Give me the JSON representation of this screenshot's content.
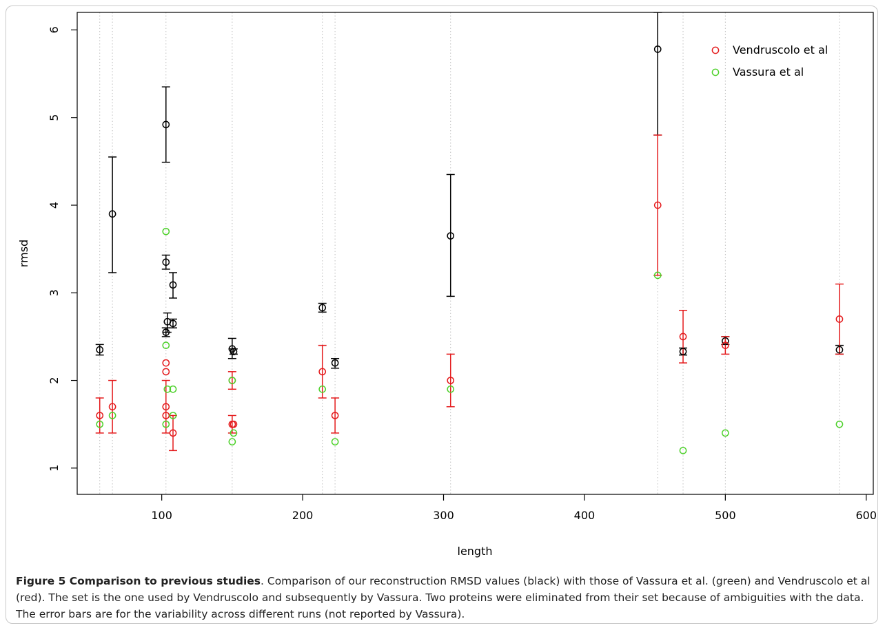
{
  "chart_data": {
    "type": "scatter",
    "xlabel": "length",
    "ylabel": "rmsd",
    "xlim": [
      40,
      605
    ],
    "ylim": [
      0.7,
      6.2
    ],
    "x_ticks": [
      100,
      200,
      300,
      400,
      500,
      600
    ],
    "y_ticks": [
      1,
      2,
      3,
      4,
      5,
      6
    ],
    "grid": "vertical dotted lines at each protein length",
    "legend_position": "top-right",
    "guide_lines_x": [
      56,
      65,
      103,
      150,
      214,
      223,
      305,
      452,
      470,
      500,
      581
    ],
    "series": [
      {
        "color": "#000000",
        "points": [
          {
            "x": 56,
            "y": 2.35,
            "lo": 2.29,
            "hi": 2.41
          },
          {
            "x": 65,
            "y": 3.9,
            "lo": 3.23,
            "hi": 4.55
          },
          {
            "x": 103,
            "y": 4.92,
            "lo": 4.49,
            "hi": 5.35
          },
          {
            "x": 103,
            "y": 3.35,
            "lo": 3.27,
            "hi": 3.43
          },
          {
            "x": 103,
            "y": 2.55,
            "lo": 2.5,
            "hi": 2.6
          },
          {
            "x": 104,
            "y": 2.67,
            "lo": 2.55,
            "hi": 2.77
          },
          {
            "x": 108,
            "y": 3.09,
            "lo": 2.94,
            "hi": 3.23
          },
          {
            "x": 108,
            "y": 2.65,
            "lo": 2.6,
            "hi": 2.7
          },
          {
            "x": 150,
            "y": 2.36,
            "lo": 2.25,
            "hi": 2.48
          },
          {
            "x": 151,
            "y": 2.33,
            "lo": 2.3,
            "hi": 2.36
          },
          {
            "x": 214,
            "y": 2.83,
            "lo": 2.78,
            "hi": 2.88
          },
          {
            "x": 223,
            "y": 2.2,
            "lo": 2.14,
            "hi": 2.25
          },
          {
            "x": 305,
            "y": 3.65,
            "lo": 2.96,
            "hi": 4.35
          },
          {
            "x": 452,
            "y": 5.78,
            "lo": 4.8,
            "hi": 6.2
          },
          {
            "x": 470,
            "y": 2.33,
            "lo": 2.29,
            "hi": 2.37
          },
          {
            "x": 500,
            "y": 2.45,
            "lo": 2.41,
            "hi": 2.5
          },
          {
            "x": 581,
            "y": 2.35,
            "lo": 2.3,
            "hi": 2.4
          }
        ]
      },
      {
        "name": "Vendruscolo et al",
        "color": "#e41a1c",
        "points": [
          {
            "x": 56,
            "y": 1.6,
            "lo": 1.4,
            "hi": 1.8
          },
          {
            "x": 65,
            "y": 1.7,
            "lo": 1.4,
            "hi": 2.0
          },
          {
            "x": 103,
            "y": 2.2
          },
          {
            "x": 103,
            "y": 2.1
          },
          {
            "x": 103,
            "y": 1.7,
            "lo": 1.4,
            "hi": 2.0
          },
          {
            "x": 103,
            "y": 1.6
          },
          {
            "x": 108,
            "y": 1.4,
            "lo": 1.2,
            "hi": 1.6
          },
          {
            "x": 150,
            "y": 1.5,
            "lo": 1.4,
            "hi": 1.6
          },
          {
            "x": 151,
            "y": 1.5
          },
          {
            "x": 150,
            "y": 2.0,
            "lo": 1.9,
            "hi": 2.1
          },
          {
            "x": 214,
            "y": 2.1,
            "lo": 1.8,
            "hi": 2.4
          },
          {
            "x": 223,
            "y": 1.6,
            "lo": 1.4,
            "hi": 1.8
          },
          {
            "x": 305,
            "y": 2.0,
            "lo": 1.7,
            "hi": 2.3
          },
          {
            "x": 452,
            "y": 4.0,
            "lo": 3.2,
            "hi": 4.8
          },
          {
            "x": 470,
            "y": 2.5,
            "lo": 2.2,
            "hi": 2.8
          },
          {
            "x": 500,
            "y": 2.4,
            "lo": 2.3,
            "hi": 2.5
          },
          {
            "x": 581,
            "y": 2.7,
            "lo": 2.3,
            "hi": 3.1
          }
        ]
      },
      {
        "name": "Vassura et al",
        "color": "#4dd12a",
        "points": [
          {
            "x": 56,
            "y": 1.5
          },
          {
            "x": 65,
            "y": 1.6
          },
          {
            "x": 103,
            "y": 3.7
          },
          {
            "x": 103,
            "y": 2.4
          },
          {
            "x": 104,
            "y": 1.9
          },
          {
            "x": 108,
            "y": 1.9
          },
          {
            "x": 103,
            "y": 1.5
          },
          {
            "x": 108,
            "y": 1.6
          },
          {
            "x": 150,
            "y": 2.0
          },
          {
            "x": 150,
            "y": 1.3
          },
          {
            "x": 151,
            "y": 1.4
          },
          {
            "x": 214,
            "y": 1.9
          },
          {
            "x": 223,
            "y": 1.3
          },
          {
            "x": 305,
            "y": 1.9
          },
          {
            "x": 452,
            "y": 3.2
          },
          {
            "x": 470,
            "y": 1.2
          },
          {
            "x": 500,
            "y": 1.4
          },
          {
            "x": 581,
            "y": 1.5
          }
        ]
      }
    ]
  },
  "caption": {
    "label": "Figure 5 Comparison to previous studies",
    "text": ". Comparison of our reconstruction RMSD values (black) with those of Vassura et al. (green) and Vendruscolo et al (red). The set is the one used by Vendruscolo and subsequently by Vassura. Two proteins were eliminated from their set because of ambiguities with the data. The error bars are for the variability across different runs (not reported by Vassura)."
  }
}
